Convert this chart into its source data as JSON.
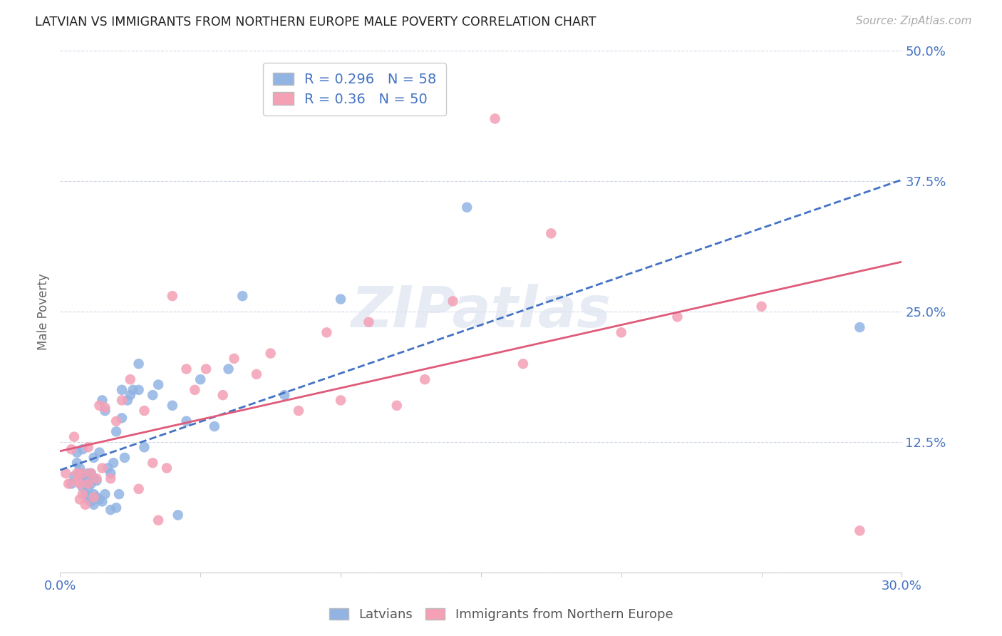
{
  "title": "LATVIAN VS IMMIGRANTS FROM NORTHERN EUROPE MALE POVERTY CORRELATION CHART",
  "source": "Source: ZipAtlas.com",
  "ylabel": "Male Poverty",
  "xlim": [
    0.0,
    0.3
  ],
  "ylim": [
    0.0,
    0.5
  ],
  "yticks": [
    0.0,
    0.125,
    0.25,
    0.375,
    0.5
  ],
  "ytick_labels": [
    "",
    "12.5%",
    "25.0%",
    "37.5%",
    "50.0%"
  ],
  "xticks": [
    0.0,
    0.05,
    0.1,
    0.15,
    0.2,
    0.25,
    0.3
  ],
  "xtick_labels": [
    "0.0%",
    "",
    "",
    "",
    "",
    "",
    "30.0%"
  ],
  "latvian_R": 0.296,
  "latvian_N": 58,
  "immigrant_R": 0.36,
  "immigrant_N": 50,
  "latvian_color": "#92b4e3",
  "immigrant_color": "#f4a0b5",
  "latvian_line_color": "#4472c4",
  "immigrant_line_color": "#e05a7a",
  "axis_label_color": "#4472c4",
  "grid_color": "#d0d8e8",
  "background_color": "#ffffff",
  "watermark_text": "ZIPatlas",
  "latvian_x": [
    0.004,
    0.005,
    0.006,
    0.006,
    0.007,
    0.007,
    0.008,
    0.008,
    0.008,
    0.009,
    0.009,
    0.01,
    0.01,
    0.01,
    0.011,
    0.011,
    0.011,
    0.012,
    0.012,
    0.012,
    0.012,
    0.013,
    0.013,
    0.014,
    0.014,
    0.015,
    0.015,
    0.016,
    0.016,
    0.017,
    0.018,
    0.018,
    0.019,
    0.02,
    0.02,
    0.021,
    0.022,
    0.022,
    0.023,
    0.024,
    0.025,
    0.026,
    0.028,
    0.028,
    0.03,
    0.033,
    0.035,
    0.04,
    0.042,
    0.045,
    0.05,
    0.055,
    0.06,
    0.065,
    0.08,
    0.1,
    0.145,
    0.285
  ],
  "latvian_y": [
    0.085,
    0.092,
    0.105,
    0.115,
    0.095,
    0.1,
    0.082,
    0.088,
    0.118,
    0.075,
    0.09,
    0.07,
    0.08,
    0.095,
    0.068,
    0.085,
    0.095,
    0.065,
    0.075,
    0.09,
    0.11,
    0.072,
    0.088,
    0.07,
    0.115,
    0.068,
    0.165,
    0.075,
    0.155,
    0.1,
    0.06,
    0.095,
    0.105,
    0.062,
    0.135,
    0.075,
    0.148,
    0.175,
    0.11,
    0.165,
    0.17,
    0.175,
    0.175,
    0.2,
    0.12,
    0.17,
    0.18,
    0.16,
    0.055,
    0.145,
    0.185,
    0.14,
    0.195,
    0.265,
    0.17,
    0.262,
    0.35,
    0.235
  ],
  "immigrant_x": [
    0.002,
    0.003,
    0.004,
    0.005,
    0.006,
    0.006,
    0.007,
    0.007,
    0.008,
    0.008,
    0.009,
    0.01,
    0.01,
    0.011,
    0.012,
    0.013,
    0.014,
    0.015,
    0.016,
    0.018,
    0.02,
    0.022,
    0.025,
    0.028,
    0.03,
    0.033,
    0.035,
    0.038,
    0.04,
    0.045,
    0.048,
    0.052,
    0.058,
    0.062,
    0.07,
    0.075,
    0.085,
    0.095,
    0.1,
    0.11,
    0.12,
    0.13,
    0.14,
    0.155,
    0.165,
    0.175,
    0.2,
    0.22,
    0.25,
    0.285
  ],
  "immigrant_y": [
    0.095,
    0.085,
    0.118,
    0.13,
    0.088,
    0.095,
    0.07,
    0.085,
    0.075,
    0.095,
    0.065,
    0.085,
    0.12,
    0.095,
    0.072,
    0.09,
    0.16,
    0.1,
    0.158,
    0.09,
    0.145,
    0.165,
    0.185,
    0.08,
    0.155,
    0.105,
    0.05,
    0.1,
    0.265,
    0.195,
    0.175,
    0.195,
    0.17,
    0.205,
    0.19,
    0.21,
    0.155,
    0.23,
    0.165,
    0.24,
    0.16,
    0.185,
    0.26,
    0.435,
    0.2,
    0.325,
    0.23,
    0.245,
    0.255,
    0.04
  ]
}
